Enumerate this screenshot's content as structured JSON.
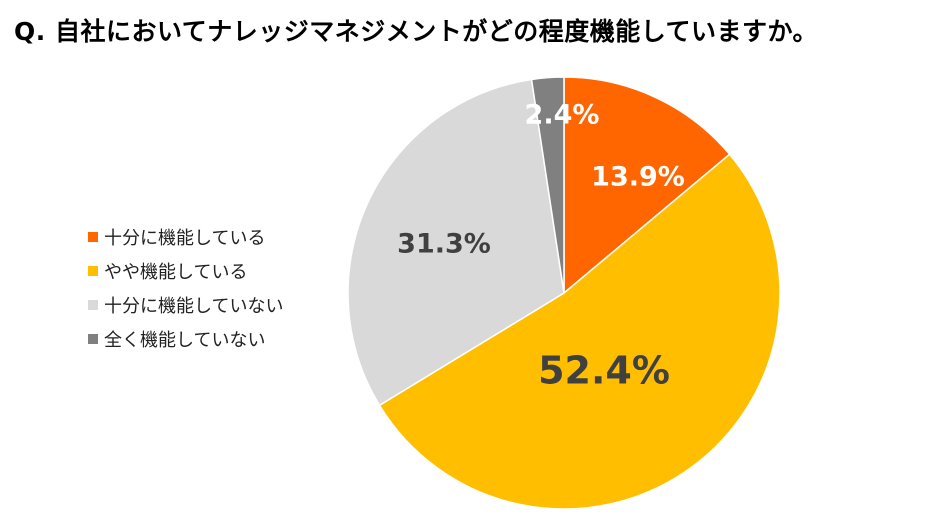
{
  "chart_data": {
    "type": "pie",
    "title": "Q. 自社においてナレッジマネジメントがどの程度機能していますか。",
    "slices": [
      {
        "label": "十分に機能している",
        "value": 13.9,
        "display": "13.9%",
        "color": "#FF6600",
        "text_color": "#FFFFFF"
      },
      {
        "label": "やや機能している",
        "value": 52.4,
        "display": "52.4%",
        "color": "#FFBF00",
        "text_color": "#404040"
      },
      {
        "label": "十分に機能していない",
        "value": 31.3,
        "display": "31.3%",
        "color": "#D9D9D9",
        "text_color": "#404040"
      },
      {
        "label": "全く機能していない",
        "value": 2.4,
        "display": "2.4%",
        "color": "#808080",
        "text_color": "#FFFFFF"
      }
    ],
    "legend_position": "left"
  }
}
